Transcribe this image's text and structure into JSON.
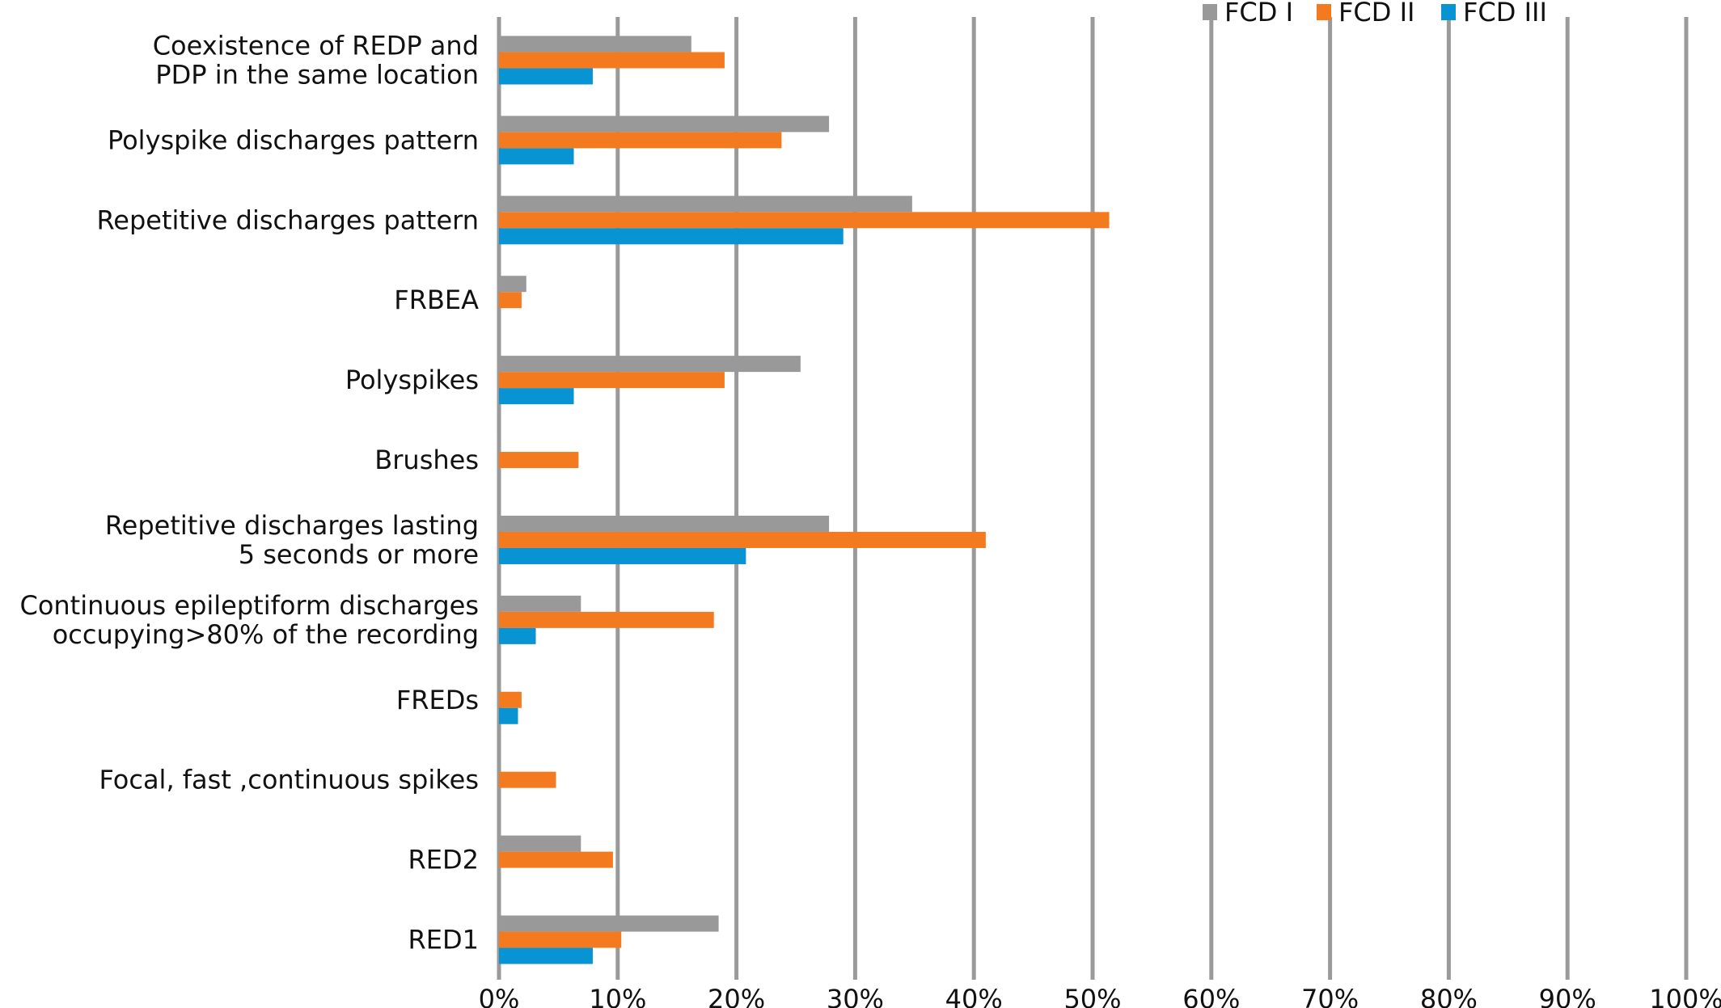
{
  "chart_data": {
    "type": "bar",
    "orientation": "horizontal",
    "categories": [
      [
        "Coexistence of REDP and ",
        "PDP in the same location"
      ],
      [
        "Polyspike discharges pattern"
      ],
      [
        "Repetitive discharges pattern"
      ],
      [
        "FRBEA"
      ],
      [
        "Polyspikes"
      ],
      [
        "Brushes"
      ],
      [
        "Repetitive discharges lasting ",
        "5 seconds or more"
      ],
      [
        "Continuous epileptiform discharges ",
        "occupying>80% of the recording"
      ],
      [
        "FREDs"
      ],
      [
        "Focal, fast ,continuous spikes"
      ],
      [
        "RED2"
      ],
      [
        "RED1"
      ]
    ],
    "series": [
      {
        "name": "FCD I",
        "color": "#999999",
        "values": [
          16.2,
          27.8,
          34.8,
          2.3,
          25.4,
          0,
          27.8,
          6.9,
          0,
          0,
          6.9,
          18.5
        ]
      },
      {
        "name": "FCD II",
        "color": "#f47a20",
        "values": [
          19.0,
          23.8,
          51.4,
          1.9,
          19.0,
          6.7,
          41.0,
          18.1,
          1.9,
          4.8,
          9.6,
          10.3
        ]
      },
      {
        "name": "FCD III",
        "color": "#0893d3",
        "values": [
          7.9,
          6.3,
          29.0,
          0,
          6.3,
          0,
          20.8,
          3.1,
          1.6,
          0,
          0,
          7.9
        ]
      }
    ],
    "x_ticks": [
      "0%",
      "10%",
      "20%",
      "30%",
      "40%",
      "50%",
      "60%",
      "70%",
      "80%",
      "90%",
      "100%"
    ],
    "xlim": [
      0,
      100
    ],
    "grid": "vertical",
    "legend_position": "top-right",
    "title": "",
    "xlabel": "",
    "ylabel": ""
  }
}
